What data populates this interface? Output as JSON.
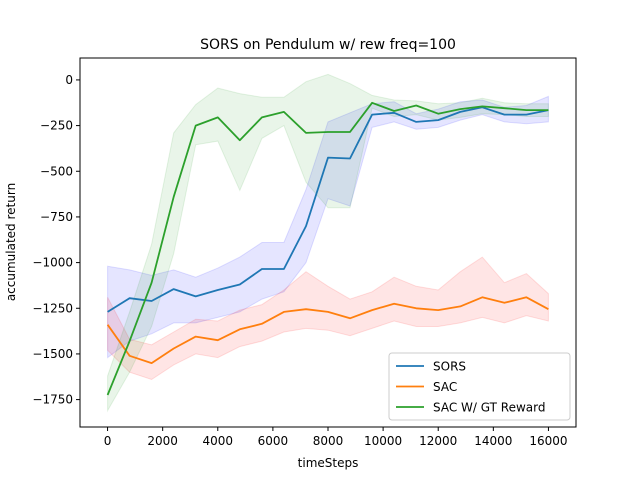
{
  "chart_data": {
    "type": "line",
    "title": "SORS on Pendulum w/ rew freq=100",
    "xlabel": "timeSteps",
    "ylabel": "accumulated return",
    "xlim": [
      -1000,
      17000
    ],
    "ylim": [
      -1900,
      120
    ],
    "xticks": [
      0,
      2000,
      4000,
      6000,
      8000,
      10000,
      12000,
      14000,
      16000
    ],
    "yticks": [
      0,
      -250,
      -500,
      -750,
      -1000,
      -1250,
      -1500,
      -1750
    ],
    "grid": false,
    "legend_position": "lower-right",
    "x": [
      0,
      800,
      1600,
      2400,
      3200,
      4000,
      4800,
      5600,
      6400,
      7200,
      8000,
      8800,
      9600,
      10400,
      11200,
      12000,
      12800,
      13600,
      14400,
      15200,
      16000
    ],
    "series": [
      {
        "name": "SORS",
        "color": "#1f77b4",
        "band_color": "#0000ff",
        "values": [
          -1270,
          -1195,
          -1210,
          -1145,
          -1185,
          -1150,
          -1120,
          -1035,
          -1035,
          -800,
          -425,
          -430,
          -190,
          -180,
          -230,
          -220,
          -175,
          -150,
          -190,
          -190,
          -165
        ],
        "lower": [
          -1520,
          -1430,
          -1390,
          -1330,
          -1330,
          -1300,
          -1270,
          -1200,
          -1160,
          -1000,
          -650,
          -690,
          -260,
          -230,
          -270,
          -260,
          -220,
          -190,
          -230,
          -240,
          -230
        ],
        "upper": [
          -1020,
          -1040,
          -1070,
          -1040,
          -1080,
          -1030,
          -970,
          -890,
          -890,
          -600,
          -230,
          -180,
          -130,
          -120,
          -185,
          -160,
          -120,
          -110,
          -150,
          -140,
          -90
        ]
      },
      {
        "name": "SAC",
        "color": "#ff7f0e",
        "band_color": "#ff0000",
        "values": [
          -1340,
          -1510,
          -1550,
          -1470,
          -1405,
          -1425,
          -1365,
          -1335,
          -1270,
          -1255,
          -1270,
          -1305,
          -1260,
          -1225,
          -1250,
          -1260,
          -1240,
          -1190,
          -1220,
          -1190,
          -1255
        ],
        "lower": [
          -1480,
          -1600,
          -1640,
          -1560,
          -1500,
          -1520,
          -1460,
          -1430,
          -1380,
          -1360,
          -1370,
          -1400,
          -1360,
          -1320,
          -1350,
          -1350,
          -1330,
          -1300,
          -1330,
          -1290,
          -1320
        ],
        "upper": [
          -1190,
          -1420,
          -1450,
          -1380,
          -1310,
          -1320,
          -1260,
          -1230,
          -1150,
          -1050,
          -1130,
          -1200,
          -1160,
          -1080,
          -1130,
          -1150,
          -1050,
          -970,
          -1110,
          -1060,
          -1170
        ]
      },
      {
        "name": "SAC W/ GT Reward",
        "color": "#2ca02c",
        "band_color": "#2ca02c",
        "values": [
          -1725,
          -1430,
          -1110,
          -640,
          -250,
          -205,
          -330,
          -205,
          -175,
          -290,
          -285,
          -285,
          -125,
          -170,
          -140,
          -185,
          -160,
          -145,
          -155,
          -165,
          -165
        ],
        "lower": [
          -1810,
          -1600,
          -1350,
          -950,
          -355,
          -335,
          -605,
          -320,
          -250,
          -560,
          -700,
          -700,
          -155,
          -200,
          -190,
          -220,
          -205,
          -185,
          -190,
          -200,
          -200
        ],
        "upper": [
          -1620,
          -1270,
          -900,
          -290,
          -135,
          -45,
          -75,
          -95,
          -95,
          -10,
          30,
          -20,
          -85,
          -110,
          -115,
          -130,
          -125,
          -100,
          -125,
          -130,
          -130
        ]
      }
    ]
  }
}
